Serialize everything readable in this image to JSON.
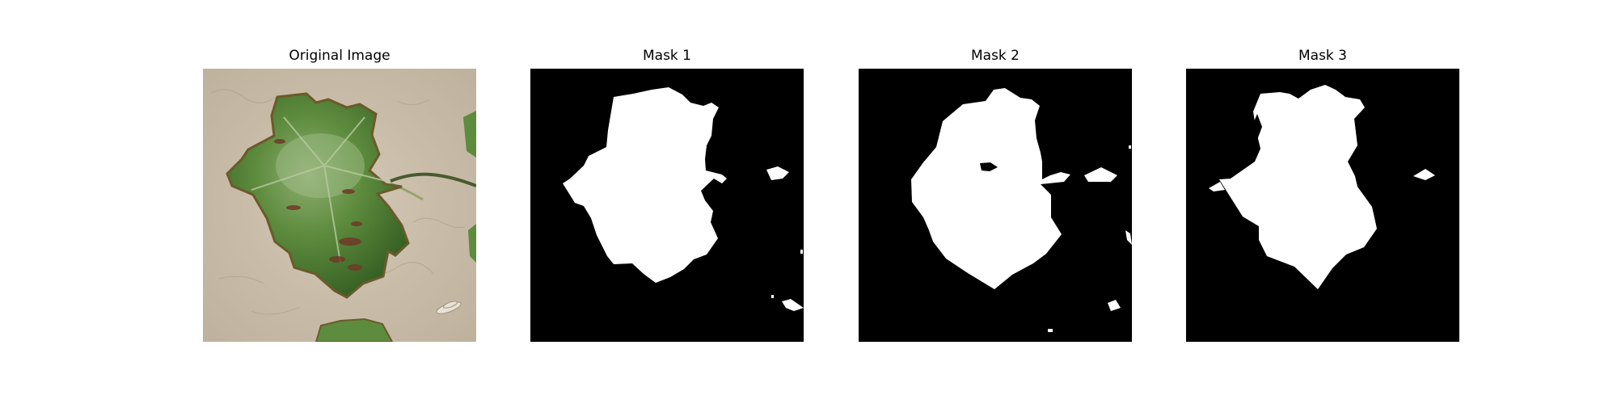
{
  "figure": {
    "panels": [
      {
        "title": "Original Image",
        "content": "leaf-photo"
      },
      {
        "title": "Mask 1",
        "content": "segmentation-mask"
      },
      {
        "title": "Mask 2",
        "content": "segmentation-mask"
      },
      {
        "title": "Mask 3",
        "content": "segmentation-mask"
      }
    ]
  },
  "colors": {
    "background": "#ffffff",
    "mask_background": "#000000",
    "mask_foreground": "#ffffff",
    "paper": "#c8bca8",
    "leaf_dark": "#3e6a2a",
    "leaf_mid": "#5e8c3e",
    "leaf_light": "#8fae73",
    "leaf_spot": "#6e3a28"
  }
}
